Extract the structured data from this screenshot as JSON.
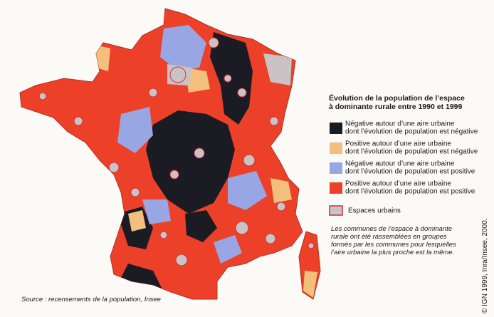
{
  "legend": {
    "title": [
      "Évolution de la population de l’espace",
      "à dominante rurale entre 1990 et 1999"
    ],
    "items": [
      {
        "color": "#1b1b24",
        "label": [
          "Négative autour d’une aire urbaine",
          "dont l’évolution de population est négative"
        ]
      },
      {
        "color": "#f2c07c",
        "label": [
          "Positive autour d’une aire urbaine",
          "dont l’évolution de population est négative"
        ]
      },
      {
        "color": "#98a6e4",
        "label": [
          "Négative autour d’une aire urbaine",
          "dont l’évolution de population est positive"
        ]
      },
      {
        "color": "#ec4128",
        "label": [
          "Positive autour d’une aire urbaine",
          "dont l’évolution de population est positive"
        ]
      },
      {
        "color": "#c9c3c6",
        "label": [
          "Espaces urbains"
        ]
      }
    ]
  },
  "note": [
    "Les communes de l’espace à dominante",
    "rurale ont été rassemblées en groupes",
    "formés par les communes pour lesquelles",
    "l’aire urbaine la plus proche est la même."
  ],
  "source": "Source : recensements de la population, Insee",
  "copyright": "© IGN 1999, Inra/Insee, 2000."
}
